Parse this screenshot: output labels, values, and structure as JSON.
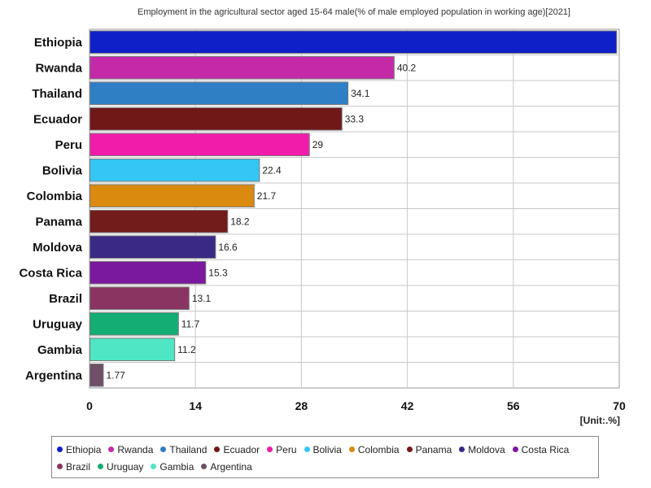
{
  "chart_data": {
    "type": "bar",
    "orientation": "horizontal",
    "title": "Employment in the agricultural sector aged 15-64 male(% of male employed population in working age)[2021]",
    "unit_label": "[Unit:.%]",
    "categories": [
      "Ethiopia",
      "Rwanda",
      "Thailand",
      "Ecuador",
      "Peru",
      "Bolivia",
      "Colombia",
      "Panama",
      "Moldova",
      "Costa Rica",
      "Brazil",
      "Uruguay",
      "Gambia",
      "Argentina"
    ],
    "values": [
      69.6,
      40.2,
      34.1,
      33.3,
      29,
      22.4,
      21.7,
      18.2,
      16.6,
      15.3,
      13.1,
      11.7,
      11.2,
      1.77
    ],
    "value_labels": [
      "",
      "40.2",
      "34.1",
      "33.3",
      "29",
      "22.4",
      "21.7",
      "18.2",
      "16.6",
      "15.3",
      "13.1",
      "11.7",
      "11.2",
      "1.77"
    ],
    "colors": [
      "#1020c8",
      "#c42aa8",
      "#2e7fc4",
      "#701818",
      "#f21caa",
      "#34c6f4",
      "#d98a0f",
      "#731c1c",
      "#3a2a86",
      "#7a189e",
      "#8a3462",
      "#14ad74",
      "#4ee6c4",
      "#6e5068"
    ],
    "xlim": [
      0,
      70
    ],
    "xticks": [
      0,
      14,
      28,
      42,
      56,
      70
    ],
    "xtick_labels": [
      "0",
      "14",
      "28",
      "42",
      "56",
      "70"
    ],
    "grid": true,
    "legend_position": "bottom"
  }
}
